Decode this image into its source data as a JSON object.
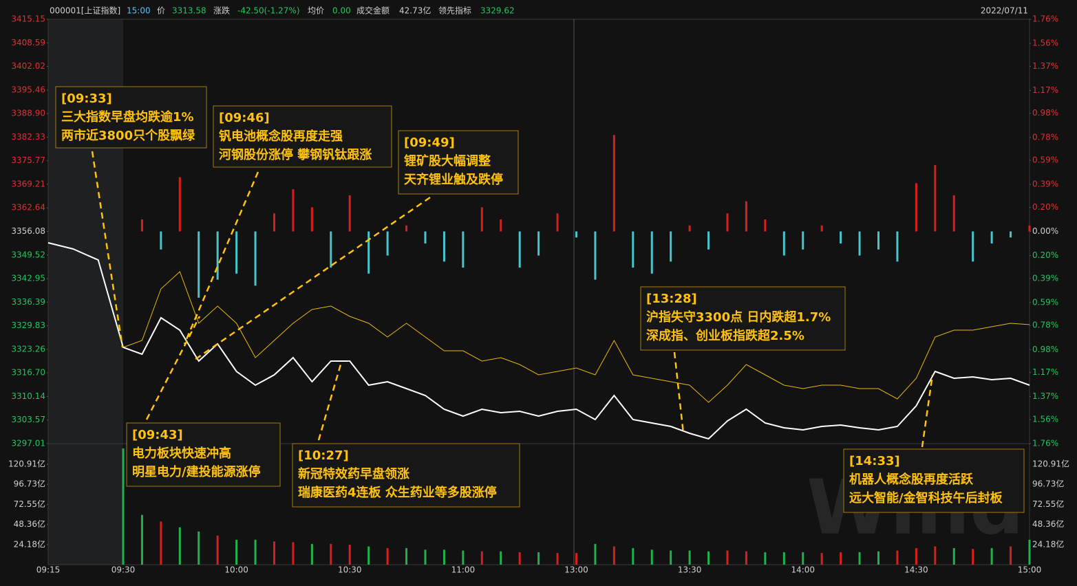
{
  "chart_data": {
    "type": "line",
    "header": {
      "code": "000001[上证指数]",
      "time": "15:00",
      "price_label": "价",
      "price": "3313.58",
      "change_label": "涨跌",
      "change": "-42.50(-1.27%)",
      "avg_label": "均价",
      "avg": "0.00",
      "amount_label": "成交金额",
      "amount": "42.73亿",
      "lead_label": "领先指标",
      "lead": "3329.62",
      "date": "2022/07/11",
      "watermark": "Wind"
    },
    "x": [
      "09:15",
      "09:20",
      "09:25",
      "09:30",
      "09:35",
      "09:40",
      "09:45",
      "09:50",
      "09:55",
      "10:00",
      "10:05",
      "10:10",
      "10:15",
      "10:20",
      "10:25",
      "10:30",
      "10:35",
      "10:40",
      "10:45",
      "10:50",
      "10:55",
      "11:00",
      "11:05",
      "11:10",
      "11:15",
      "11:20",
      "11:25",
      "11:30",
      "13:05",
      "13:10",
      "13:15",
      "13:20",
      "13:25",
      "13:30",
      "13:35",
      "13:40",
      "13:45",
      "13:50",
      "13:55",
      "14:00",
      "14:05",
      "14:10",
      "14:15",
      "14:20",
      "14:25",
      "14:30",
      "14:35",
      "14:40",
      "14:45",
      "14:50",
      "14:55",
      "15:00"
    ],
    "xticks": [
      "09:15",
      "09:30",
      "10:00",
      "10:30",
      "11:00",
      "13:00",
      "13:30",
      "14:00",
      "14:30",
      "15:00"
    ],
    "ylim": [
      3297.01,
      3415.15
    ],
    "yticks": [
      3415.15,
      3408.59,
      3402.02,
      3395.46,
      {
        "value": 3388.9,
        "label": "3388.90"
      },
      3382.33,
      3375.77,
      3369.21,
      3362.64,
      3356.08,
      3349.52,
      3342.95,
      3336.39,
      3329.83,
      3323.26,
      {
        "value": 3316.7,
        "label": "3316.70"
      },
      3310.14,
      3303.57,
      3297.01
    ],
    "y2lim": [
      -1.76,
      1.76
    ],
    "y2ticks": [
      {
        "value": 1.76,
        "label": "1.76%"
      },
      {
        "value": 1.56,
        "label": "1.56%"
      },
      {
        "value": 1.37,
        "label": "1.37%"
      },
      {
        "value": 1.17,
        "label": "1.17%"
      },
      {
        "value": 0.98,
        "label": "0.98%"
      },
      {
        "value": 0.78,
        "label": "0.78%"
      },
      {
        "value": 0.59,
        "label": "0.59%"
      },
      {
        "value": 0.39,
        "label": "0.39%"
      },
      {
        "value": 0.2,
        "label": "0.20%"
      },
      {
        "value": 0,
        "label": "0.00%"
      },
      {
        "value": -0.2,
        "label": "0.20%"
      },
      {
        "value": -0.39,
        "label": "0.39%"
      },
      {
        "value": -0.59,
        "label": "0.59%"
      },
      {
        "value": -0.78,
        "label": "0.78%"
      },
      {
        "value": -0.98,
        "label": "0.98%"
      },
      {
        "value": -1.17,
        "label": "1.17%"
      },
      {
        "value": -1.37,
        "label": "1.37%"
      },
      {
        "value": -1.56,
        "label": "1.56%"
      },
      {
        "value": -1.76,
        "label": "1.76%"
      }
    ],
    "y3lim": [
      0,
      145.8
    ],
    "y3ticks": [
      {
        "value": 120.91,
        "label": "120.91亿"
      },
      {
        "value": 96.73,
        "label": "96.73亿"
      },
      {
        "value": 72.55,
        "label": "72.55亿"
      },
      {
        "value": 48.36,
        "label": "48.36亿"
      },
      {
        "value": 24.18,
        "label": "24.18亿"
      }
    ],
    "series": [
      {
        "type": "line",
        "color": "#ffffff",
        "values": [
          3352.92,
          3351.2,
          3348.14,
          3323.82,
          3321.9,
          3332.05,
          3328.61,
          3319.99,
          3324.78,
          3317.12,
          3313.29,
          3316.16,
          3320.95,
          3314.25,
          3319.99,
          3319.99,
          3313.29,
          3314.25,
          3312.33,
          3310.42,
          3306.59,
          3304.67,
          3306.59,
          3305.63,
          3306.01,
          3304.67,
          3306.01,
          3306.59,
          3303.71,
          3310.42,
          3303.71,
          3302.76,
          3301.8,
          3299.89,
          3298.35,
          3303.33,
          3306.59,
          3302.76,
          3301.42,
          3300.84,
          3301.8,
          3302.18,
          3301.42,
          3300.84,
          3301.8,
          3307.54,
          3317.12,
          3315.2,
          3315.59,
          3314.82,
          3315.2,
          3313.29
        ]
      },
      {
        "type": "line",
        "color": "#e8b90c",
        "values": [
          null,
          null,
          null,
          3323.82,
          3325.73,
          3340.09,
          3344.88,
          3330.52,
          3335.31,
          3330.52,
          3320.95,
          3325.73,
          3330.52,
          3334.35,
          3335.31,
          3332.43,
          3330.52,
          3326.69,
          3330.52,
          3326.69,
          3322.86,
          3322.86,
          3319.99,
          3320.95,
          3319.03,
          3316.16,
          3317.12,
          3318.07,
          3316.16,
          3325.73,
          3316.16,
          3315.2,
          3314.25,
          3313.29,
          3308.5,
          3313.29,
          3319.03,
          3316.16,
          3313.29,
          3312.33,
          3313.29,
          3313.29,
          3312.33,
          3312.33,
          3309.46,
          3315.2,
          3326.69,
          3328.61,
          3328.61,
          3329.56,
          3330.52,
          3330.14
        ]
      },
      {
        "type": "bar",
        "axis": "y2",
        "up_color": "#d81e1e",
        "down_color": "#4cc4cc",
        "values": [
          null,
          null,
          null,
          null,
          0.1,
          -0.15,
          0.45,
          -0.55,
          -0.4,
          -0.35,
          -0.45,
          0.15,
          0.35,
          0.2,
          -0.3,
          0.3,
          -0.35,
          -0.2,
          0.05,
          -0.1,
          -0.25,
          -0.3,
          0.2,
          0.1,
          -0.3,
          -0.2,
          0.15,
          -0.05,
          -0.4,
          0.8,
          -0.3,
          -0.35,
          -0.25,
          0.05,
          -0.15,
          0.15,
          0.25,
          0.1,
          -0.2,
          -0.15,
          0.05,
          -0.1,
          -0.2,
          -0.15,
          -0.25,
          0.4,
          0.55,
          0.3,
          -0.25,
          -0.1,
          -0.05,
          0.05
        ]
      },
      {
        "type": "bar",
        "axis": "y3",
        "up_color": "#d81e1e",
        "down_color": "#22b14c",
        "values": [
          null,
          null,
          null,
          140,
          60,
          52,
          45,
          40,
          35,
          30,
          30,
          28,
          27,
          25,
          25,
          24,
          22,
          20,
          20,
          18,
          18,
          17,
          16,
          16,
          15,
          15,
          14,
          14,
          25,
          22,
          20,
          18,
          17,
          17,
          16,
          17,
          16,
          15,
          15,
          15,
          14,
          15,
          15,
          16,
          17,
          20,
          22,
          20,
          19,
          20,
          22,
          30
        ]
      }
    ],
    "annotations": [
      {
        "time": "[09:33]",
        "lines": [
          "三大指数早盘均跌逾1%",
          "两市近3800只个股飘绿"
        ]
      },
      {
        "time": "[09:46]",
        "lines": [
          "钒电池概念股再度走强",
          "河钢股份涨停 攀钢钒钛跟涨"
        ]
      },
      {
        "time": "[09:49]",
        "lines": [
          "锂矿股大幅调整",
          "天齐锂业触及跌停"
        ]
      },
      {
        "time": "[09:43]",
        "lines": [
          "电力板块快速冲高",
          "明星电力/建投能源涨停"
        ]
      },
      {
        "time": "[10:27]",
        "lines": [
          "新冠特效药早盘领涨",
          "瑞康医药4连板 众生药业等多股涨停"
        ]
      },
      {
        "time": "[13:28]",
        "lines": [
          "沪指失守3300点 日内跌超1.7%",
          "深成指、创业板指跌超2.5%"
        ]
      },
      {
        "time": "[14:33]",
        "lines": [
          "机器人概念股再度活跃",
          "远大智能/金智科技午后封板"
        ]
      }
    ]
  }
}
